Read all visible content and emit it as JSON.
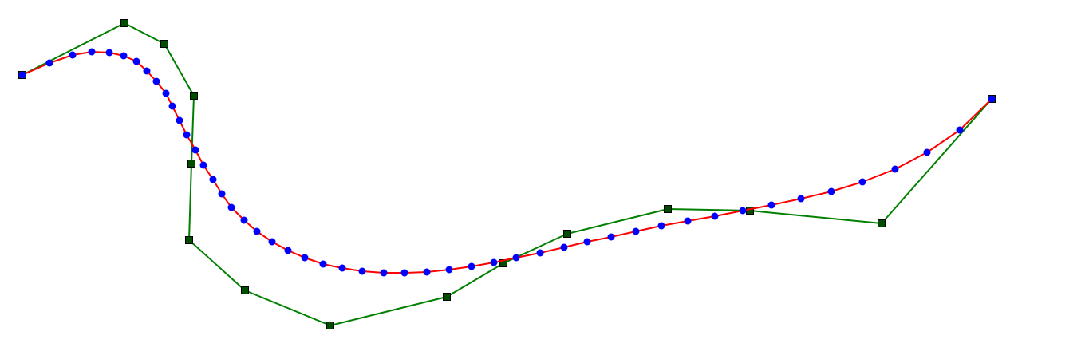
{
  "chart_data": {
    "type": "line",
    "title": "",
    "xlabel": "",
    "ylabel": "",
    "grid": false,
    "legend": "none",
    "axes_visible": false,
    "colors": {
      "control_polygon": "#008000",
      "control_point_marker": "#004d00",
      "curve": "#ff0000",
      "curve_points": "#0000ff"
    },
    "series": [
      {
        "role": "control-polygon",
        "marker": "square",
        "points": [
          [
            28,
            94
          ],
          [
            156,
            29
          ],
          [
            206,
            55
          ],
          [
            243,
            120
          ],
          [
            240,
            205
          ],
          [
            237,
            301
          ],
          [
            307,
            364
          ],
          [
            414,
            408
          ],
          [
            560,
            372
          ],
          [
            631,
            330
          ],
          [
            711,
            293
          ],
          [
            837,
            262
          ],
          [
            940,
            264
          ],
          [
            1105,
            280
          ],
          [
            1243,
            124
          ]
        ]
      },
      {
        "role": "sampled-curve",
        "marker": "circle",
        "points": [
          [
            28,
            94
          ],
          [
            62,
            79
          ],
          [
            91,
            69
          ],
          [
            115,
            65
          ],
          [
            137,
            66
          ],
          [
            155,
            70
          ],
          [
            171,
            77
          ],
          [
            184,
            89
          ],
          [
            196,
            102
          ],
          [
            208,
            117
          ],
          [
            216,
            133
          ],
          [
            225,
            151
          ],
          [
            234,
            169
          ],
          [
            245,
            188
          ],
          [
            255,
            207
          ],
          [
            267,
            225
          ],
          [
            278,
            243
          ],
          [
            290,
            260
          ],
          [
            306,
            276
          ],
          [
            322,
            290
          ],
          [
            341,
            303
          ],
          [
            361,
            314
          ],
          [
            382,
            323
          ],
          [
            405,
            331
          ],
          [
            429,
            336
          ],
          [
            454,
            340
          ],
          [
            481,
            342
          ],
          [
            507,
            342
          ],
          [
            535,
            341
          ],
          [
            563,
            338
          ],
          [
            591,
            334
          ],
          [
            619,
            329
          ],
          [
            647,
            323
          ],
          [
            677,
            317
          ],
          [
            707,
            310
          ],
          [
            736,
            303
          ],
          [
            766,
            297
          ],
          [
            797,
            290
          ],
          [
            829,
            283
          ],
          [
            862,
            277
          ],
          [
            896,
            271
          ],
          [
            931,
            264
          ],
          [
            967,
            257
          ],
          [
            1004,
            249
          ],
          [
            1042,
            240
          ],
          [
            1081,
            228
          ],
          [
            1122,
            212
          ],
          [
            1162,
            191
          ],
          [
            1203,
            163
          ],
          [
            1243,
            124
          ]
        ]
      }
    ]
  }
}
